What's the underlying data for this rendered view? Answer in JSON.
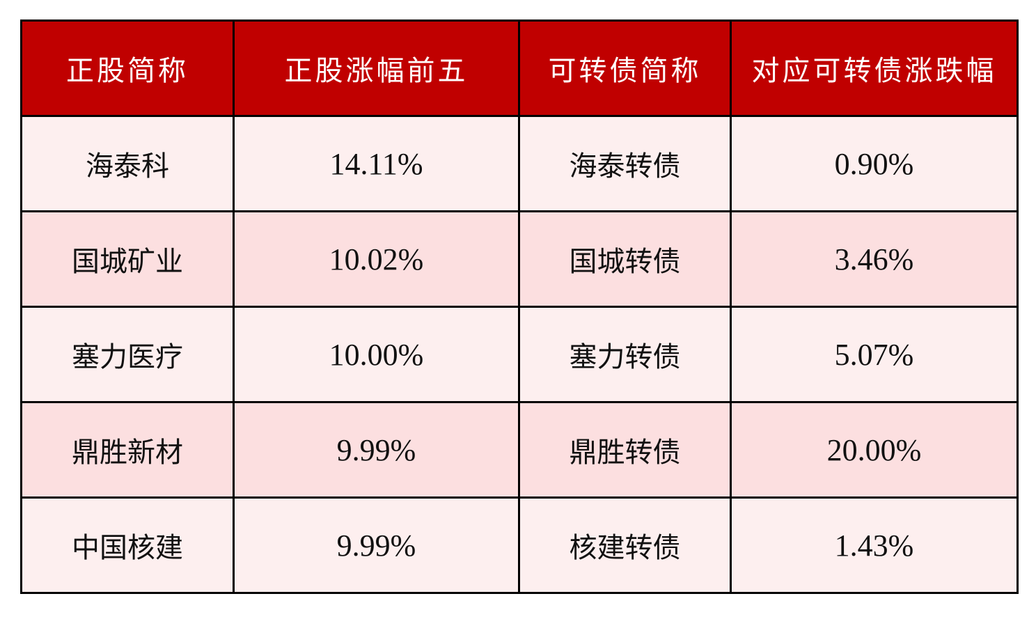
{
  "colors": {
    "header_bg": "#C00000",
    "header_text": "#FFFFFF",
    "row_odd": "#FDEFEF",
    "row_even": "#FCDFE0",
    "border": "#000000"
  },
  "table": {
    "headers": [
      "正股简称",
      "正股涨幅前五",
      "可转债简称",
      "对应可转债涨跌幅"
    ],
    "rows": [
      [
        "海泰科",
        "14.11%",
        "海泰转债",
        "0.90%"
      ],
      [
        "国城矿业",
        "10.02%",
        "国城转债",
        "3.46%"
      ],
      [
        "塞力医疗",
        "10.00%",
        "塞力转债",
        "5.07%"
      ],
      [
        "鼎胜新材",
        "9.99%",
        "鼎胜转债",
        "20.00%"
      ],
      [
        "中国核建",
        "9.99%",
        "核建转债",
        "1.43%"
      ]
    ]
  }
}
